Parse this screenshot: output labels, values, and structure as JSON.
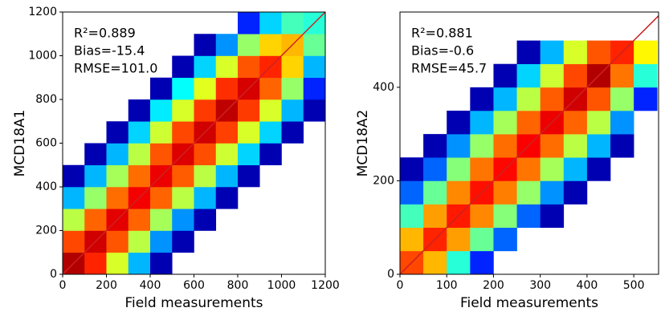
{
  "chart_data": [
    {
      "type": "hist2d",
      "xlabel": "Field measurements",
      "ylabel": "MCD18A1",
      "xlim": [
        0,
        1200
      ],
      "ylim": [
        0,
        1200
      ],
      "xticks": [
        0,
        200,
        400,
        600,
        800,
        1000,
        1200
      ],
      "yticks": [
        0,
        200,
        400,
        600,
        800,
        1000,
        1200
      ],
      "xbins": [
        0,
        100,
        200,
        300,
        400,
        500,
        600,
        700,
        800,
        900,
        1000,
        1100,
        1200
      ],
      "ybins": [
        0,
        100,
        200,
        300,
        400,
        500,
        600,
        700,
        800,
        900,
        1000,
        1100,
        1200
      ],
      "counts": [
        [
          300,
          150,
          30,
          5,
          1,
          0,
          0,
          0,
          0,
          0,
          0,
          0
        ],
        [
          120,
          250,
          110,
          25,
          4,
          1,
          0,
          0,
          0,
          0,
          0,
          0
        ],
        [
          25,
          100,
          220,
          100,
          22,
          4,
          1,
          0,
          0,
          0,
          0,
          0
        ],
        [
          5,
          20,
          95,
          200,
          100,
          25,
          5,
          1,
          0,
          0,
          0,
          0
        ],
        [
          1,
          5,
          22,
          95,
          210,
          105,
          25,
          5,
          1,
          0,
          0,
          0
        ],
        [
          0,
          1,
          5,
          25,
          110,
          230,
          115,
          28,
          6,
          1,
          0,
          0
        ],
        [
          0,
          0,
          1,
          6,
          28,
          120,
          250,
          125,
          30,
          6,
          1,
          0
        ],
        [
          0,
          0,
          0,
          1,
          7,
          30,
          130,
          280,
          130,
          30,
          5,
          1
        ],
        [
          0,
          0,
          0,
          0,
          1,
          8,
          32,
          140,
          240,
          100,
          20,
          2
        ],
        [
          0,
          0,
          0,
          0,
          0,
          1,
          6,
          30,
          110,
          150,
          50,
          5
        ],
        [
          0,
          0,
          0,
          0,
          0,
          0,
          1,
          4,
          20,
          50,
          60,
          15
        ],
        [
          0,
          0,
          0,
          0,
          0,
          0,
          0,
          0,
          2,
          6,
          12,
          10
        ]
      ],
      "reference_line_color": "#cc2222",
      "stats": [
        "R²=0.889",
        "Bias=-15.4",
        "RMSE=101.0"
      ]
    },
    {
      "type": "hist2d",
      "xlabel": "Field measurements",
      "ylabel": "MCD18A2",
      "xlim": [
        0,
        553
      ],
      "ylim": [
        0,
        561
      ],
      "xticks": [
        0,
        100,
        200,
        300,
        400,
        500
      ],
      "yticks": [
        0,
        200,
        400
      ],
      "xbins": [
        0,
        50,
        100,
        150,
        200,
        250,
        300,
        350,
        400,
        450,
        500,
        550
      ],
      "ybins": [
        0,
        50,
        100,
        150,
        200,
        250,
        300,
        350,
        400,
        450,
        500
      ],
      "counts": [
        [
          120,
          60,
          10,
          2,
          0,
          0,
          0,
          0,
          0,
          0,
          0
        ],
        [
          60,
          150,
          70,
          15,
          3,
          0,
          0,
          0,
          0,
          0,
          0
        ],
        [
          12,
          70,
          160,
          80,
          18,
          3,
          1,
          0,
          0,
          0,
          0
        ],
        [
          3,
          15,
          80,
          170,
          85,
          20,
          4,
          1,
          0,
          0,
          0
        ],
        [
          1,
          3,
          18,
          90,
          180,
          90,
          22,
          5,
          1,
          0,
          0
        ],
        [
          0,
          1,
          4,
          20,
          95,
          190,
          95,
          25,
          5,
          1,
          0
        ],
        [
          0,
          0,
          1,
          5,
          22,
          100,
          210,
          100,
          25,
          4,
          0
        ],
        [
          0,
          0,
          0,
          1,
          5,
          25,
          105,
          250,
          110,
          20,
          2
        ],
        [
          0,
          0,
          0,
          0,
          1,
          6,
          28,
          120,
          300,
          90,
          10
        ],
        [
          0,
          0,
          0,
          0,
          0,
          1,
          5,
          30,
          110,
          150,
          40
        ]
      ],
      "reference_line_color": "#cc2222",
      "stats": [
        "R²=0.881",
        "Bias=-0.6",
        "RMSE=45.7"
      ]
    }
  ]
}
